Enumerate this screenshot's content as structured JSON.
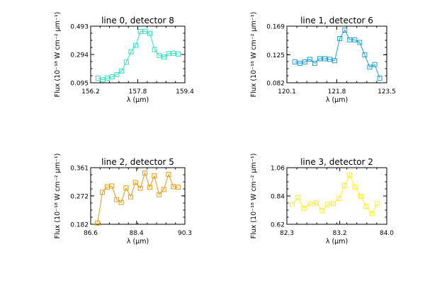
{
  "chart_data": [
    {
      "type": "line",
      "title": "line 0, detector 8",
      "xlabel": "λ (μm)",
      "ylabel": "Flux (10⁻¹⁸ W cm⁻² μm⁻¹)",
      "xlim": [
        156.2,
        159.4
      ],
      "ylim": [
        0.095,
        0.493
      ],
      "xticks": [
        "156.2",
        "157.8",
        "159.4"
      ],
      "yticks": [
        "0.095",
        "0.294",
        "0.493"
      ],
      "color": "#33e0c0",
      "x": [
        156.45,
        156.61,
        156.77,
        156.93,
        157.09,
        157.25,
        157.41,
        157.57,
        157.73,
        157.89,
        158.05,
        158.21,
        158.37,
        158.53,
        158.69,
        158.85,
        159.01,
        159.17
      ],
      "y": [
        0.128,
        0.116,
        0.128,
        0.137,
        0.153,
        0.178,
        0.24,
        0.313,
        0.358,
        0.455,
        0.457,
        0.442,
        0.328,
        0.288,
        0.276,
        0.3,
        0.303,
        0.297
      ]
    },
    {
      "type": "line",
      "title": "line 1, detector 6",
      "xlabel": "λ (μm)",
      "ylabel": "Flux (10⁻¹⁸ W cm⁻² μm⁻¹)",
      "xlim": [
        120.1,
        123.5
      ],
      "ylim": [
        0.082,
        0.169
      ],
      "xticks": [
        "120.1",
        "121.8",
        "123.5"
      ],
      "yticks": [
        "0.082",
        "0.125",
        "0.169"
      ],
      "color": "#1f9fd6",
      "x": [
        120.37,
        120.54,
        120.71,
        120.88,
        121.05,
        121.22,
        121.39,
        121.56,
        121.73,
        121.9,
        122.07,
        122.24,
        122.41,
        122.58,
        122.75,
        122.92,
        123.09,
        123.26
      ],
      "y": [
        0.114,
        0.112,
        0.114,
        0.118,
        0.112,
        0.119,
        0.119,
        0.118,
        0.116,
        0.15,
        0.163,
        0.148,
        0.148,
        0.144,
        0.125,
        0.106,
        0.11,
        0.089
      ]
    },
    {
      "type": "line",
      "title": "line 2, detector 5",
      "xlabel": "λ (μm)",
      "ylabel": "Flux (10⁻¹⁸ W cm⁻² μm⁻¹)",
      "xlim": [
        86.6,
        90.3
      ],
      "ylim": [
        0.182,
        0.361
      ],
      "xticks": [
        "86.6",
        "88.4",
        "90.3"
      ],
      "yticks": [
        "0.182",
        "0.272",
        "0.361"
      ],
      "color": "#e79b14",
      "x": [
        86.87,
        87.06,
        87.25,
        87.43,
        87.62,
        87.8,
        87.99,
        88.17,
        88.36,
        88.55,
        88.73,
        88.92,
        89.1,
        89.29,
        89.47,
        89.66,
        89.85,
        90.03
      ],
      "y": [
        0.186,
        0.283,
        0.3,
        0.303,
        0.26,
        0.251,
        0.297,
        0.269,
        0.314,
        0.296,
        0.344,
        0.299,
        0.335,
        0.276,
        0.292,
        0.34,
        0.301,
        0.299
      ]
    },
    {
      "type": "line",
      "title": "line 3, detector 2",
      "xlabel": "λ (μm)",
      "ylabel": "Flux (10⁻¹⁸ W cm⁻² μm⁻¹)",
      "xlim": [
        82.3,
        84.0
      ],
      "ylim": [
        0.62,
        1.06
      ],
      "xticks": [
        "82.3",
        "83.2",
        "84.0"
      ],
      "yticks": [
        "0.62",
        "0.84",
        "1.06"
      ],
      "color": "#ffee22",
      "x": [
        82.39,
        82.49,
        82.59,
        82.7,
        82.8,
        82.9,
        82.99,
        83.09,
        83.19,
        83.28,
        83.37,
        83.46,
        83.56,
        83.65,
        83.75,
        83.84
      ],
      "y": [
        0.775,
        0.827,
        0.744,
        0.78,
        0.787,
        0.728,
        0.773,
        0.781,
        0.821,
        0.92,
        1.002,
        0.91,
        0.837,
        0.758,
        0.703,
        0.78
      ]
    }
  ]
}
